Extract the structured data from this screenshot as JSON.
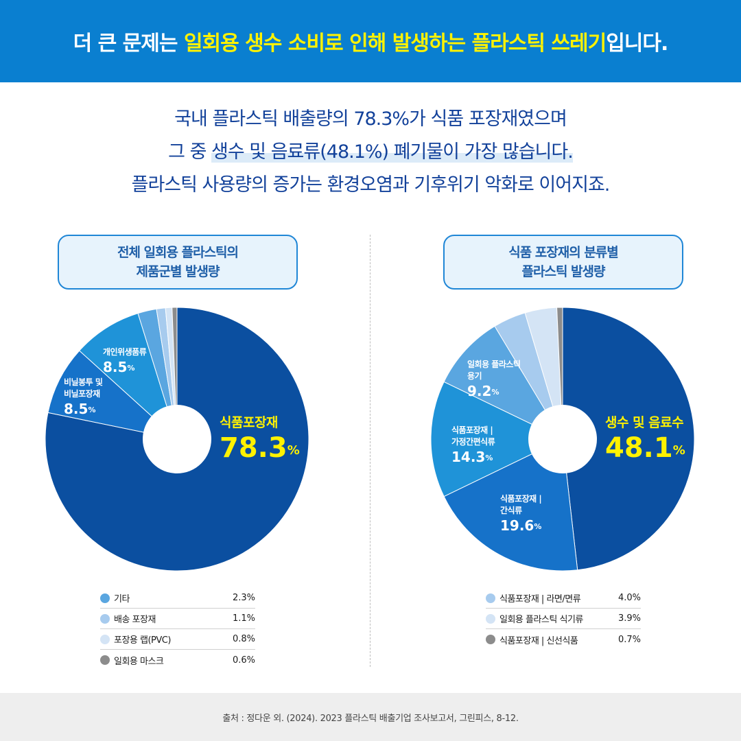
{
  "header": {
    "title_pre": "더 큰 문제는 ",
    "title_highlight": "일회용 생수 소비로 인해 발생하는 플라스틱 쓰레기",
    "title_post": "입니다."
  },
  "intro": {
    "line1": "국내 플라스틱 배출량의 78.3%가 식품 포장재였으며",
    "line2_pre": "그 중 ",
    "line2_mark": "생수 및 음료류(48.1%) 폐기물이 가장 많습니다.",
    "line3": "플라스틱 사용량의 증가는 환경오염과 기후위기 악화로 이어지죠."
  },
  "colors": {
    "dark_blue": "#0b4fa0",
    "mid_blue": "#1672c9",
    "sky_blue": "#1f93d8",
    "light_blue": "#5aa6e0",
    "pale_blue": "#a7cbee",
    "paler_blue": "#d4e4f5",
    "gray": "#8c8c8c",
    "highlight_yellow": "#fff200"
  },
  "chart_data": [
    {
      "type": "pie",
      "title": "전체 일회용 플라스틱의 제품군별 발생량",
      "title_lines": [
        "전체 일회용 플라스틱의",
        "제품군별 발생량"
      ],
      "series": [
        {
          "name": "식품포장재",
          "value": 78.3,
          "label_lines": [
            "식품포장재"
          ],
          "display": "78.3",
          "color": "#0b4fa0"
        },
        {
          "name": "비닐봉투 및 비닐포장재",
          "value": 8.5,
          "label_lines": [
            "비닐봉투 및",
            "비닐포장재"
          ],
          "display": "8.5",
          "color": "#1672c9"
        },
        {
          "name": "개인위생품류",
          "value": 8.5,
          "label_lines": [
            "개인위생품류"
          ],
          "display": "8.5",
          "color": "#1f93d8"
        },
        {
          "name": "기타",
          "value": 2.3,
          "display": "2.3%",
          "color": "#5aa6e0"
        },
        {
          "name": "배송 포장재",
          "value": 1.1,
          "display": "1.1%",
          "color": "#a7cbee"
        },
        {
          "name": "포장용 랩(PVC)",
          "value": 0.8,
          "display": "0.8%",
          "color": "#d4e4f5"
        },
        {
          "name": "일회용 마스크",
          "value": 0.6,
          "display": "0.6%",
          "color": "#8c8c8c"
        }
      ]
    },
    {
      "type": "pie",
      "title": "식품 포장재의 분류별 플라스틱 발생량",
      "title_lines": [
        "식품 포장재의 분류별",
        "플라스틱 발생량"
      ],
      "series": [
        {
          "name": "생수 및 음료수",
          "value": 48.1,
          "label_lines": [
            "생수 및 음료수"
          ],
          "display": "48.1",
          "color": "#0b4fa0"
        },
        {
          "name": "식품포장재 | 간식류",
          "value": 19.6,
          "label_lines": [
            "식품포장재 |",
            "간식류"
          ],
          "display": "19.6",
          "color": "#1672c9"
        },
        {
          "name": "식품포장재 | 가정간편식류",
          "value": 14.3,
          "label_lines": [
            "식품포장재 |",
            "가정간편식류"
          ],
          "display": "14.3",
          "color": "#1f93d8"
        },
        {
          "name": "일회용 플라스틱 용기",
          "value": 9.2,
          "label_lines": [
            "일회용 플라스틱",
            "용기"
          ],
          "display": "9.2",
          "color": "#5aa6e0"
        },
        {
          "name": "식품포장재 | 라면/면류",
          "value": 4.0,
          "display": "4.0%",
          "color": "#a7cbee"
        },
        {
          "name": "일회용 플라스틱 식기류",
          "value": 3.9,
          "display": "3.9%",
          "color": "#d4e4f5"
        },
        {
          "name": "식품포장재 | 신선식품",
          "value": 0.7,
          "display": "0.7%",
          "color": "#8c8c8c"
        }
      ]
    }
  ],
  "footer": {
    "source": "출처 : 정다운 외. (2024). 2023 플라스틱 배출기업 조사보고서, 그린피스, 8-12."
  }
}
